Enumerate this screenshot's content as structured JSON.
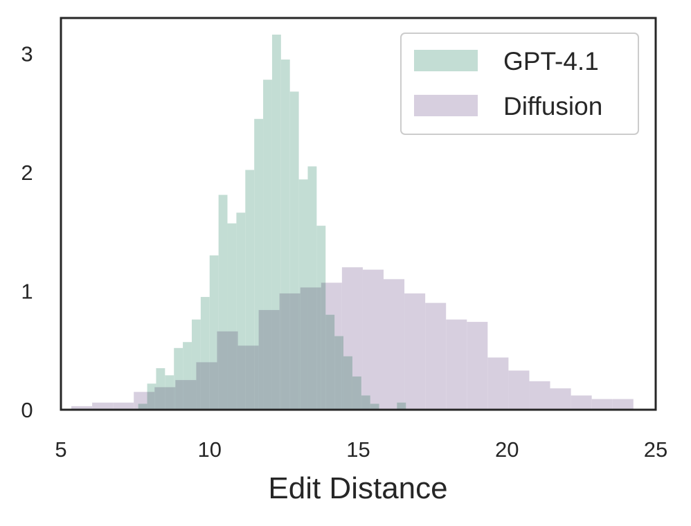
{
  "chart_data": {
    "type": "bar",
    "subtype": "histogram",
    "title": "",
    "xlabel": "Edit Distance",
    "ylabel": "",
    "xlim": [
      5,
      25
    ],
    "ylim": [
      0,
      3.3
    ],
    "xticks": [
      5,
      10,
      15,
      20,
      25
    ],
    "yticks": [
      0,
      1,
      2,
      3
    ],
    "grid": false,
    "legend_position": "top-right",
    "series": [
      {
        "name": "Diffusion",
        "color": "#d7cfdf",
        "edges": [
          5.35,
          6.05,
          6.75,
          7.45,
          8.15,
          8.85,
          9.55,
          10.25,
          10.95,
          11.65,
          12.35,
          13.05,
          13.75,
          14.45,
          15.15,
          15.85,
          16.55,
          17.25,
          17.95,
          18.65,
          19.35,
          20.05,
          20.75,
          21.45,
          22.15,
          22.85,
          23.55,
          24.25
        ],
        "values": [
          0.03,
          0.06,
          0.06,
          0.15,
          0.19,
          0.25,
          0.4,
          0.66,
          0.54,
          0.84,
          0.98,
          1.03,
          1.07,
          1.2,
          1.18,
          1.1,
          0.98,
          0.9,
          0.76,
          0.74,
          0.44,
          0.33,
          0.24,
          0.18,
          0.12,
          0.09,
          0.09
        ]
      },
      {
        "name": "GPT-4.1",
        "color": "#c3ddd4",
        "edges": [
          7.6,
          7.9,
          8.2,
          8.5,
          8.8,
          9.1,
          9.4,
          9.7,
          10.0,
          10.3,
          10.6,
          10.9,
          11.2,
          11.5,
          11.8,
          12.1,
          12.4,
          12.7,
          13.0,
          13.3,
          13.6,
          13.9,
          14.2,
          14.5,
          14.8,
          15.1,
          15.4,
          15.7,
          16.0,
          16.3,
          16.6,
          16.9
        ],
        "values": [
          0.05,
          0.22,
          0.35,
          0.29,
          0.52,
          0.57,
          0.76,
          0.95,
          1.3,
          1.81,
          1.57,
          1.66,
          2.02,
          2.45,
          2.78,
          3.16,
          2.95,
          2.68,
          1.94,
          2.05,
          1.55,
          0.8,
          0.62,
          0.45,
          0.28,
          0.12,
          0.05,
          0.0,
          0.0,
          0.06,
          0.0
        ]
      }
    ],
    "overlap_color": "#a6b5b9"
  }
}
